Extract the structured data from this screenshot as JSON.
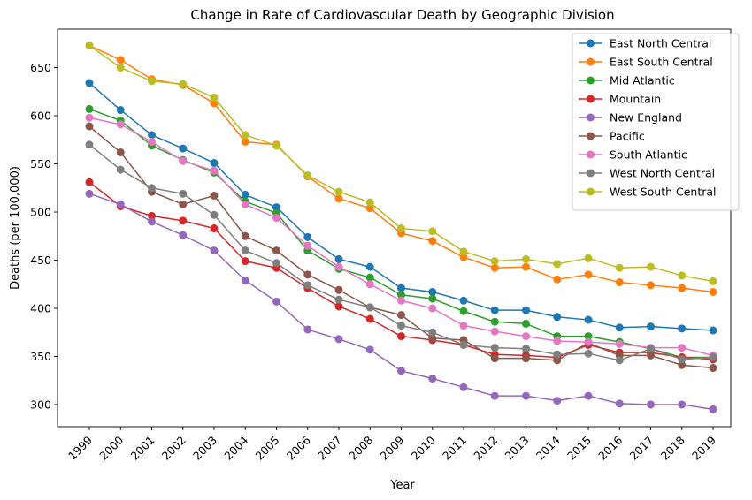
{
  "chart_data": {
    "type": "line",
    "title": "Change in Rate of Cardiovascular Death by Geographic Division",
    "xlabel": "Year",
    "ylabel": "Deaths (per 100,000)",
    "ylim": [
      277,
      690
    ],
    "yticks": [
      300,
      350,
      400,
      450,
      500,
      550,
      600,
      650
    ],
    "grid": false,
    "legend_position": "top-right",
    "categories": [
      "1999",
      "2000",
      "2001",
      "2002",
      "2003",
      "2004",
      "2005",
      "2006",
      "2007",
      "2008",
      "2009",
      "2010",
      "2011",
      "2012",
      "2013",
      "2014",
      "2015",
      "2016",
      "2017",
      "2018",
      "2019"
    ],
    "series": [
      {
        "name": "East North Central",
        "color": "#1f77b4",
        "values": [
          634,
          606,
          580,
          566,
          551,
          518,
          505,
          474,
          451,
          443,
          421,
          417,
          408,
          398,
          398,
          391,
          388,
          380,
          381,
          379,
          377
        ]
      },
      {
        "name": "East South Central",
        "color": "#ff7f0e",
        "values": [
          673,
          658,
          638,
          632,
          613,
          573,
          570,
          537,
          514,
          504,
          478,
          470,
          453,
          442,
          443,
          430,
          435,
          427,
          424,
          421,
          417
        ]
      },
      {
        "name": "Mid Atlantic",
        "color": "#2ca02c",
        "values": [
          607,
          595,
          569,
          554,
          541,
          511,
          499,
          460,
          441,
          432,
          414,
          410,
          397,
          386,
          384,
          371,
          371,
          365,
          358,
          349,
          349
        ]
      },
      {
        "name": "Mountain",
        "color": "#d62728",
        "values": [
          531,
          506,
          496,
          491,
          483,
          449,
          442,
          421,
          402,
          389,
          371,
          367,
          362,
          352,
          351,
          349,
          362,
          354,
          354,
          349,
          347
        ]
      },
      {
        "name": "New England",
        "color": "#9467bd",
        "values": [
          519,
          508,
          490,
          476,
          460,
          429,
          407,
          378,
          368,
          357,
          335,
          327,
          318,
          309,
          309,
          304,
          309,
          301,
          300,
          300,
          295
        ]
      },
      {
        "name": "Pacific",
        "color": "#8c564b",
        "values": [
          589,
          562,
          521,
          508,
          517,
          475,
          460,
          435,
          419,
          401,
          393,
          369,
          367,
          348,
          348,
          346,
          364,
          351,
          351,
          341,
          338
        ]
      },
      {
        "name": "South Atlantic",
        "color": "#e377c2",
        "values": [
          598,
          591,
          573,
          553,
          543,
          508,
          494,
          465,
          443,
          425,
          408,
          400,
          382,
          376,
          371,
          366,
          365,
          363,
          359,
          359,
          351
        ]
      },
      {
        "name": "West North Central",
        "color": "#7f7f7f",
        "values": [
          570,
          544,
          525,
          519,
          497,
          460,
          447,
          424,
          409,
          401,
          382,
          375,
          362,
          359,
          358,
          352,
          353,
          346,
          358,
          347,
          349
        ]
      },
      {
        "name": "West South Central",
        "color": "#bcbd22",
        "values": [
          673,
          650,
          636,
          633,
          619,
          580,
          569,
          538,
          521,
          510,
          483,
          480,
          459,
          449,
          451,
          446,
          452,
          442,
          443,
          434,
          428
        ]
      }
    ]
  }
}
